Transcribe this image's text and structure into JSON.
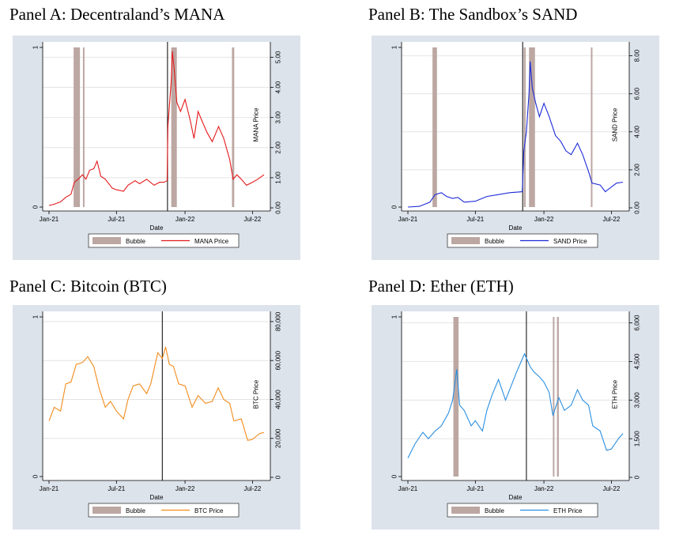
{
  "colors": {
    "background": "#dce3eb",
    "bubble": "#bca7a3",
    "mana": "#e41a1c",
    "sand": "#1d2bd6",
    "btc": "#f28c1c",
    "eth": "#2b8fe0"
  },
  "chart_data": [
    {
      "panel_title": "Panel A: Decentraland’s MANA",
      "type": "line",
      "xlabel": "Date",
      "x_ticks": [
        "Jan-21",
        "Jul-21",
        "Jan-22",
        "Jul-22"
      ],
      "x_range": [
        "2021-01-01",
        "2022-08-01"
      ],
      "left_axis": {
        "ticks": [
          "0",
          "1"
        ],
        "range": [
          0,
          1
        ]
      },
      "right_axis": {
        "label": "MANA Price",
        "ticks": [
          "0.00",
          "1.00",
          "2.00",
          "3.00",
          "4.00",
          "5.00"
        ],
        "range": [
          0,
          5.3
        ]
      },
      "legend": {
        "bubble": "Bubble",
        "price": "MANA Price",
        "position": "bottom"
      },
      "grid": true,
      "color_key": "mana",
      "vline": "2021-11-15",
      "bubbles": [
        [
          "2021-03-08",
          "2021-03-25"
        ],
        [
          "2021-04-02",
          "2021-04-05"
        ],
        [
          "2021-11-25",
          "2021-12-10"
        ],
        [
          "2022-05-07",
          "2022-05-13"
        ]
      ],
      "price": [
        [
          "2021-01-01",
          0.08
        ],
        [
          "2021-01-15",
          0.12
        ],
        [
          "2021-02-01",
          0.2
        ],
        [
          "2021-02-15",
          0.35
        ],
        [
          "2021-03-01",
          0.45
        ],
        [
          "2021-03-10",
          0.85
        ],
        [
          "2021-03-20",
          0.95
        ],
        [
          "2021-04-01",
          1.1
        ],
        [
          "2021-04-10",
          0.95
        ],
        [
          "2021-04-20",
          1.25
        ],
        [
          "2021-05-01",
          1.3
        ],
        [
          "2021-05-10",
          1.55
        ],
        [
          "2021-05-20",
          1.05
        ],
        [
          "2021-06-01",
          0.95
        ],
        [
          "2021-06-20",
          0.65
        ],
        [
          "2021-07-01",
          0.6
        ],
        [
          "2021-07-20",
          0.55
        ],
        [
          "2021-08-01",
          0.75
        ],
        [
          "2021-08-20",
          0.9
        ],
        [
          "2021-09-01",
          0.8
        ],
        [
          "2021-09-20",
          0.95
        ],
        [
          "2021-10-10",
          0.75
        ],
        [
          "2021-10-25",
          0.85
        ],
        [
          "2021-11-05",
          0.85
        ],
        [
          "2021-11-14",
          0.9
        ],
        [
          "2021-11-16",
          2.7
        ],
        [
          "2021-11-20",
          3.4
        ],
        [
          "2021-11-25",
          4.2
        ],
        [
          "2021-11-28",
          5.2
        ],
        [
          "2021-12-03",
          4.6
        ],
        [
          "2021-12-10",
          3.5
        ],
        [
          "2021-12-20",
          3.2
        ],
        [
          "2022-01-01",
          3.6
        ],
        [
          "2022-01-15",
          2.9
        ],
        [
          "2022-01-25",
          2.3
        ],
        [
          "2022-02-05",
          3.2
        ],
        [
          "2022-02-15",
          2.9
        ],
        [
          "2022-03-01",
          2.5
        ],
        [
          "2022-03-15",
          2.2
        ],
        [
          "2022-04-01",
          2.7
        ],
        [
          "2022-04-15",
          2.3
        ],
        [
          "2022-05-01",
          1.6
        ],
        [
          "2022-05-10",
          0.95
        ],
        [
          "2022-05-20",
          1.1
        ],
        [
          "2022-06-01",
          0.95
        ],
        [
          "2022-06-15",
          0.75
        ],
        [
          "2022-07-01",
          0.85
        ],
        [
          "2022-07-15",
          0.95
        ],
        [
          "2022-08-01",
          1.1
        ]
      ]
    },
    {
      "panel_title": "Panel B: The Sandbox’s SAND",
      "type": "line",
      "xlabel": "Date",
      "x_ticks": [
        "Jan-21",
        "Jul-21",
        "Jan-22",
        "Jul-22"
      ],
      "x_range": [
        "2021-01-01",
        "2022-08-01"
      ],
      "left_axis": {
        "ticks": [
          "0",
          "1"
        ],
        "range": [
          0,
          1
        ]
      },
      "right_axis": {
        "label": "SAND Price",
        "ticks": [
          "0.00",
          "2.00",
          "4.00",
          "6.00",
          "8.00"
        ],
        "range": [
          0,
          8.4
        ]
      },
      "legend": {
        "bubble": "Bubble",
        "price": "SAND Price",
        "position": "bottom"
      },
      "grid": true,
      "color_key": "sand",
      "vline": "2021-11-05",
      "bubbles": [
        [
          "2021-03-08",
          "2021-03-20"
        ],
        [
          "2021-11-08",
          "2021-11-13"
        ],
        [
          "2021-11-22",
          "2021-12-08"
        ],
        [
          "2022-05-07",
          "2022-05-10"
        ]
      ],
      "price": [
        [
          "2021-01-01",
          0.04
        ],
        [
          "2021-02-01",
          0.08
        ],
        [
          "2021-03-01",
          0.3
        ],
        [
          "2021-03-15",
          0.7
        ],
        [
          "2021-04-01",
          0.8
        ],
        [
          "2021-04-15",
          0.6
        ],
        [
          "2021-05-01",
          0.5
        ],
        [
          "2021-05-15",
          0.55
        ],
        [
          "2021-06-01",
          0.3
        ],
        [
          "2021-07-01",
          0.35
        ],
        [
          "2021-08-01",
          0.6
        ],
        [
          "2021-09-01",
          0.7
        ],
        [
          "2021-10-01",
          0.8
        ],
        [
          "2021-11-04",
          0.85
        ],
        [
          "2021-11-08",
          3.0
        ],
        [
          "2021-11-15",
          4.0
        ],
        [
          "2021-11-22",
          6.0
        ],
        [
          "2021-11-25",
          7.7
        ],
        [
          "2021-12-01",
          6.3
        ],
        [
          "2021-12-10",
          5.5
        ],
        [
          "2021-12-20",
          4.8
        ],
        [
          "2022-01-01",
          5.5
        ],
        [
          "2022-01-15",
          4.8
        ],
        [
          "2022-02-01",
          3.8
        ],
        [
          "2022-02-15",
          3.5
        ],
        [
          "2022-03-01",
          3.0
        ],
        [
          "2022-03-15",
          2.8
        ],
        [
          "2022-04-01",
          3.4
        ],
        [
          "2022-04-15",
          2.8
        ],
        [
          "2022-05-01",
          1.9
        ],
        [
          "2022-05-10",
          1.3
        ],
        [
          "2022-06-01",
          1.2
        ],
        [
          "2022-06-15",
          0.85
        ],
        [
          "2022-07-01",
          1.1
        ],
        [
          "2022-07-15",
          1.3
        ],
        [
          "2022-08-01",
          1.35
        ]
      ]
    },
    {
      "panel_title": "Panel C: Bitcoin (BTC)",
      "type": "line",
      "xlabel": "Date",
      "x_ticks": [
        "Jan-21",
        "Jul-21",
        "Jan-22",
        "Jul-22"
      ],
      "x_range": [
        "2021-01-01",
        "2022-08-01"
      ],
      "left_axis": {
        "ticks": [
          "0",
          "1"
        ],
        "range": [
          0,
          1
        ]
      },
      "right_axis": {
        "label": "BTC Price",
        "ticks": [
          "0",
          "20,000",
          "40,000",
          "60,000",
          "80,000"
        ],
        "range": [
          0,
          82000
        ]
      },
      "legend": {
        "bubble": "Bubble",
        "price": "BTC Price",
        "position": "bottom"
      },
      "grid": true,
      "color_key": "btc",
      "vline": "2021-11-01",
      "bubbles": [],
      "price": [
        [
          "2021-01-01",
          29000
        ],
        [
          "2021-01-15",
          36000
        ],
        [
          "2021-02-01",
          34000
        ],
        [
          "2021-02-15",
          48000
        ],
        [
          "2021-03-01",
          49000
        ],
        [
          "2021-03-15",
          58000
        ],
        [
          "2021-04-01",
          59000
        ],
        [
          "2021-04-15",
          62000
        ],
        [
          "2021-05-01",
          57000
        ],
        [
          "2021-05-15",
          46000
        ],
        [
          "2021-06-01",
          36000
        ],
        [
          "2021-06-15",
          39000
        ],
        [
          "2021-07-01",
          34000
        ],
        [
          "2021-07-20",
          30000
        ],
        [
          "2021-08-01",
          40000
        ],
        [
          "2021-08-15",
          47000
        ],
        [
          "2021-09-01",
          48000
        ],
        [
          "2021-09-20",
          43000
        ],
        [
          "2021-10-01",
          48000
        ],
        [
          "2021-10-20",
          64000
        ],
        [
          "2021-11-01",
          61000
        ],
        [
          "2021-11-10",
          67000
        ],
        [
          "2021-11-20",
          58000
        ],
        [
          "2021-12-01",
          57000
        ],
        [
          "2021-12-15",
          48000
        ],
        [
          "2022-01-01",
          47000
        ],
        [
          "2022-01-20",
          36000
        ],
        [
          "2022-02-05",
          42000
        ],
        [
          "2022-02-25",
          38000
        ],
        [
          "2022-03-15",
          39000
        ],
        [
          "2022-03-31",
          46000
        ],
        [
          "2022-04-15",
          40000
        ],
        [
          "2022-05-01",
          38000
        ],
        [
          "2022-05-12",
          29000
        ],
        [
          "2022-06-01",
          30000
        ],
        [
          "2022-06-18",
          19000
        ],
        [
          "2022-07-01",
          19500
        ],
        [
          "2022-07-20",
          22500
        ],
        [
          "2022-08-01",
          23000
        ]
      ]
    },
    {
      "panel_title": "Panel D: Ether (ETH)",
      "type": "line",
      "xlabel": "Date",
      "x_ticks": [
        "Jan-21",
        "Jul-21",
        "Jan-22",
        "Jul-22"
      ],
      "x_range": [
        "2021-01-01",
        "2022-08-01"
      ],
      "left_axis": {
        "ticks": [
          "0",
          "1"
        ],
        "range": [
          0,
          1
        ]
      },
      "right_axis": {
        "label": "ETH Price",
        "ticks": [
          "0",
          "1,500",
          "3,000",
          "4,500",
          "6,000"
        ],
        "range": [
          0,
          6200
        ]
      },
      "legend": {
        "bubble": "Bubble",
        "price": "ETH Price",
        "position": "bottom"
      },
      "grid": true,
      "color_key": "eth",
      "vline": "2021-11-15",
      "bubbles": [
        [
          "2021-05-03",
          "2021-05-17"
        ],
        [
          "2022-01-25",
          "2022-01-28"
        ],
        [
          "2022-02-05",
          "2022-02-10"
        ]
      ],
      "price": [
        [
          "2021-01-01",
          750
        ],
        [
          "2021-01-20",
          1300
        ],
        [
          "2021-02-10",
          1750
        ],
        [
          "2021-02-25",
          1500
        ],
        [
          "2021-03-15",
          1800
        ],
        [
          "2021-04-01",
          2000
        ],
        [
          "2021-04-20",
          2500
        ],
        [
          "2021-05-01",
          3000
        ],
        [
          "2021-05-12",
          4200
        ],
        [
          "2021-05-20",
          2800
        ],
        [
          "2021-06-01",
          2600
        ],
        [
          "2021-06-20",
          2000
        ],
        [
          "2021-07-01",
          2200
        ],
        [
          "2021-07-20",
          1800
        ],
        [
          "2021-08-01",
          2600
        ],
        [
          "2021-08-15",
          3200
        ],
        [
          "2021-09-01",
          3800
        ],
        [
          "2021-09-20",
          3000
        ],
        [
          "2021-10-01",
          3400
        ],
        [
          "2021-10-20",
          4100
        ],
        [
          "2021-11-01",
          4500
        ],
        [
          "2021-11-10",
          4800
        ],
        [
          "2021-11-25",
          4300
        ],
        [
          "2021-12-05",
          4100
        ],
        [
          "2021-12-20",
          3900
        ],
        [
          "2022-01-01",
          3700
        ],
        [
          "2022-01-15",
          3300
        ],
        [
          "2022-01-25",
          2400
        ],
        [
          "2022-02-10",
          3100
        ],
        [
          "2022-02-25",
          2600
        ],
        [
          "2022-03-15",
          2800
        ],
        [
          "2022-04-01",
          3400
        ],
        [
          "2022-04-15",
          3000
        ],
        [
          "2022-05-01",
          2800
        ],
        [
          "2022-05-12",
          2000
        ],
        [
          "2022-06-01",
          1800
        ],
        [
          "2022-06-18",
          1050
        ],
        [
          "2022-07-01",
          1100
        ],
        [
          "2022-07-20",
          1500
        ],
        [
          "2022-08-01",
          1700
        ]
      ]
    }
  ]
}
